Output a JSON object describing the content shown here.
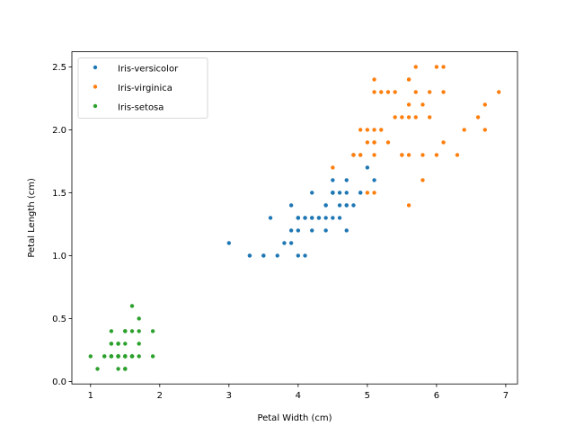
{
  "chart_data": {
    "type": "scatter",
    "title": "",
    "xlabel": "Petal Width (cm)",
    "ylabel": "Petal Length (cm)",
    "xlim": [
      0.73,
      7.17
    ],
    "ylim": [
      -0.02,
      2.62
    ],
    "xticks": [
      1,
      2,
      3,
      4,
      5,
      6,
      7
    ],
    "xtick_labels": [
      "1",
      "2",
      "3",
      "4",
      "5",
      "6",
      "7"
    ],
    "yticks": [
      0.0,
      0.5,
      1.0,
      1.5,
      2.0,
      2.5
    ],
    "ytick_labels": [
      "0.0",
      "0.5",
      "1.0",
      "1.5",
      "2.0",
      "2.5"
    ],
    "grid": false,
    "legend_position": "top-left",
    "series": [
      {
        "name": "Iris-versicolor",
        "color": "#1f77b4",
        "points": [
          [
            4.7,
            1.4
          ],
          [
            4.5,
            1.5
          ],
          [
            4.9,
            1.5
          ],
          [
            4.0,
            1.3
          ],
          [
            4.6,
            1.5
          ],
          [
            4.5,
            1.3
          ],
          [
            4.7,
            1.6
          ],
          [
            3.3,
            1.0
          ],
          [
            4.6,
            1.3
          ],
          [
            3.9,
            1.4
          ],
          [
            3.5,
            1.0
          ],
          [
            4.2,
            1.5
          ],
          [
            4.0,
            1.0
          ],
          [
            4.7,
            1.4
          ],
          [
            3.6,
            1.3
          ],
          [
            4.4,
            1.4
          ],
          [
            4.5,
            1.5
          ],
          [
            4.1,
            1.0
          ],
          [
            4.5,
            1.5
          ],
          [
            3.9,
            1.1
          ],
          [
            4.8,
            1.8
          ],
          [
            4.0,
            1.3
          ],
          [
            4.9,
            1.5
          ],
          [
            4.7,
            1.2
          ],
          [
            4.3,
            1.3
          ],
          [
            4.4,
            1.4
          ],
          [
            4.8,
            1.4
          ],
          [
            5.0,
            1.7
          ],
          [
            4.5,
            1.5
          ],
          [
            3.5,
            1.0
          ],
          [
            3.8,
            1.1
          ],
          [
            3.7,
            1.0
          ],
          [
            3.9,
            1.2
          ],
          [
            5.1,
            1.6
          ],
          [
            4.5,
            1.5
          ],
          [
            4.5,
            1.6
          ],
          [
            4.7,
            1.5
          ],
          [
            4.4,
            1.3
          ],
          [
            4.1,
            1.3
          ],
          [
            4.0,
            1.3
          ],
          [
            4.4,
            1.2
          ],
          [
            4.6,
            1.4
          ],
          [
            4.0,
            1.2
          ],
          [
            3.3,
            1.0
          ],
          [
            4.2,
            1.3
          ],
          [
            4.2,
            1.2
          ],
          [
            4.2,
            1.3
          ],
          [
            4.3,
            1.3
          ],
          [
            3.0,
            1.1
          ],
          [
            4.1,
            1.3
          ]
        ]
      },
      {
        "name": "Iris-virginica",
        "color": "#ff7f0e",
        "points": [
          [
            6.0,
            2.5
          ],
          [
            5.1,
            1.9
          ],
          [
            5.9,
            2.1
          ],
          [
            5.6,
            1.8
          ],
          [
            5.8,
            2.2
          ],
          [
            6.6,
            2.1
          ],
          [
            4.5,
            1.7
          ],
          [
            6.3,
            1.8
          ],
          [
            5.8,
            1.8
          ],
          [
            6.1,
            2.5
          ],
          [
            5.1,
            2.0
          ],
          [
            5.3,
            1.9
          ],
          [
            5.5,
            2.1
          ],
          [
            5.0,
            2.0
          ],
          [
            5.1,
            2.4
          ],
          [
            5.3,
            2.3
          ],
          [
            5.5,
            1.8
          ],
          [
            6.7,
            2.2
          ],
          [
            6.9,
            2.3
          ],
          [
            5.0,
            1.5
          ],
          [
            5.7,
            2.3
          ],
          [
            4.9,
            2.0
          ],
          [
            6.7,
            2.0
          ],
          [
            4.9,
            1.8
          ],
          [
            5.7,
            2.1
          ],
          [
            6.0,
            1.8
          ],
          [
            4.8,
            1.8
          ],
          [
            4.9,
            1.8
          ],
          [
            5.6,
            2.1
          ],
          [
            5.8,
            1.6
          ],
          [
            6.1,
            1.9
          ],
          [
            6.4,
            2.0
          ],
          [
            5.6,
            2.2
          ],
          [
            5.1,
            1.5
          ],
          [
            5.6,
            1.4
          ],
          [
            6.1,
            2.3
          ],
          [
            5.6,
            2.4
          ],
          [
            5.5,
            1.8
          ],
          [
            4.8,
            1.8
          ],
          [
            5.4,
            2.1
          ],
          [
            5.6,
            2.4
          ],
          [
            5.1,
            2.3
          ],
          [
            5.1,
            1.9
          ],
          [
            5.9,
            2.3
          ],
          [
            5.7,
            2.5
          ],
          [
            5.2,
            2.3
          ],
          [
            5.0,
            1.9
          ],
          [
            5.2,
            2.0
          ],
          [
            5.4,
            2.3
          ],
          [
            5.1,
            1.8
          ]
        ]
      },
      {
        "name": "Iris-setosa",
        "color": "#2ca02c",
        "points": [
          [
            1.4,
            0.2
          ],
          [
            1.4,
            0.2
          ],
          [
            1.3,
            0.2
          ],
          [
            1.5,
            0.2
          ],
          [
            1.4,
            0.2
          ],
          [
            1.7,
            0.4
          ],
          [
            1.4,
            0.3
          ],
          [
            1.5,
            0.2
          ],
          [
            1.4,
            0.2
          ],
          [
            1.5,
            0.1
          ],
          [
            1.5,
            0.2
          ],
          [
            1.6,
            0.2
          ],
          [
            1.4,
            0.1
          ],
          [
            1.1,
            0.1
          ],
          [
            1.2,
            0.2
          ],
          [
            1.5,
            0.4
          ],
          [
            1.3,
            0.4
          ],
          [
            1.4,
            0.3
          ],
          [
            1.7,
            0.3
          ],
          [
            1.5,
            0.3
          ],
          [
            1.7,
            0.2
          ],
          [
            1.5,
            0.4
          ],
          [
            1.0,
            0.2
          ],
          [
            1.7,
            0.5
          ],
          [
            1.9,
            0.2
          ],
          [
            1.6,
            0.2
          ],
          [
            1.6,
            0.4
          ],
          [
            1.5,
            0.2
          ],
          [
            1.4,
            0.2
          ],
          [
            1.6,
            0.2
          ],
          [
            1.6,
            0.2
          ],
          [
            1.5,
            0.4
          ],
          [
            1.5,
            0.1
          ],
          [
            1.4,
            0.2
          ],
          [
            1.5,
            0.1
          ],
          [
            1.2,
            0.2
          ],
          [
            1.3,
            0.2
          ],
          [
            1.5,
            0.1
          ],
          [
            1.3,
            0.2
          ],
          [
            1.5,
            0.2
          ],
          [
            1.3,
            0.3
          ],
          [
            1.3,
            0.3
          ],
          [
            1.3,
            0.2
          ],
          [
            1.6,
            0.6
          ],
          [
            1.9,
            0.4
          ],
          [
            1.4,
            0.3
          ],
          [
            1.6,
            0.2
          ],
          [
            1.4,
            0.2
          ],
          [
            1.5,
            0.2
          ],
          [
            1.4,
            0.2
          ]
        ]
      }
    ]
  }
}
